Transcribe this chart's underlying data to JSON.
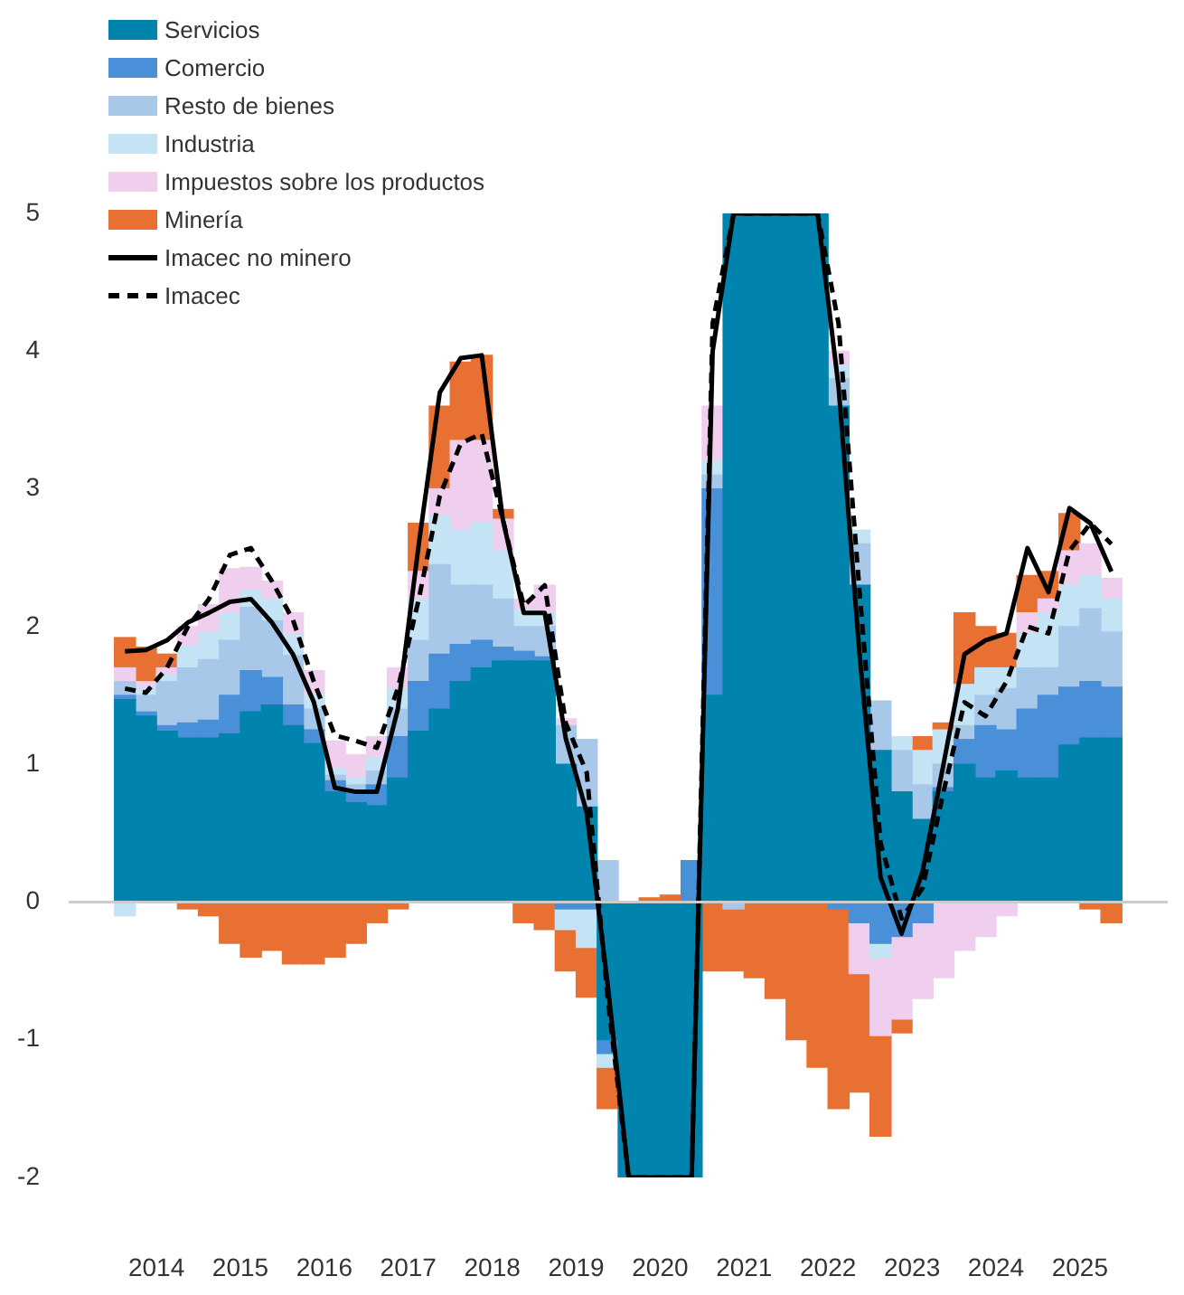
{
  "chart_data": {
    "type": "bar",
    "stacked": true,
    "legend": "top left",
    "grid": false,
    "marker": "none",
    "x": [
      2014.125,
      2014.375,
      2014.625,
      2014.875,
      2015.125,
      2015.375,
      2015.625,
      2015.875,
      2016.125,
      2016.375,
      2016.625,
      2016.875,
      2017.125,
      2017.375,
      2017.625,
      2017.875,
      2018.125,
      2018.375,
      2018.625,
      2018.875,
      2019.125,
      2019.375,
      2019.625,
      2019.875,
      2020.125,
      2020.375,
      2020.625,
      2020.875,
      2021.125,
      2021.375,
      2021.625,
      2021.875,
      2022.125,
      2022.375,
      2022.625,
      2022.875,
      2023.125,
      2023.375,
      2023.625,
      2023.875,
      2024.125,
      2024.375,
      2024.625,
      2024.875,
      2025.125,
      2025.375,
      2025.625,
      2025.875
    ],
    "xlim": [
      2014,
      2026
    ],
    "xticks": [
      {
        "value": 2014.5,
        "label": "2014"
      },
      {
        "value": 2015.5,
        "label": "2015"
      },
      {
        "value": 2016.5,
        "label": "2016"
      },
      {
        "value": 2017.5,
        "label": "2017"
      },
      {
        "value": 2018.5,
        "label": "2018"
      },
      {
        "value": 2019.5,
        "label": "2019"
      },
      {
        "value": 2020.5,
        "label": "2020"
      },
      {
        "value": 2021.5,
        "label": "2021"
      },
      {
        "value": 2022.5,
        "label": "2022"
      },
      {
        "value": 2023.5,
        "label": "2023"
      },
      {
        "value": 2024.5,
        "label": "2024"
      },
      {
        "value": 2025.5,
        "label": "2025"
      }
    ],
    "ylim": [
      -2,
      5
    ],
    "yticks": [
      -2,
      -1,
      0,
      1,
      2,
      3,
      4,
      5
    ],
    "ref_lines": [
      {
        "axis": "y",
        "value": 0,
        "color": "#cccccc"
      }
    ],
    "series": [
      {
        "name": "Servicios",
        "color": "#0083ad",
        "values": [
          1.47,
          1.35,
          1.24,
          1.19,
          1.19,
          1.22,
          1.38,
          1.43,
          1.28,
          1.15,
          0.8,
          0.72,
          0.7,
          0.9,
          1.24,
          1.4,
          1.6,
          1.7,
          1.75,
          1.75,
          1.75,
          1.0,
          0.69,
          -1.0,
          -2,
          -2,
          -2,
          -2,
          1.5,
          5,
          5,
          5,
          5,
          5,
          3.6,
          2.3,
          1.1,
          0.8,
          0.6,
          0.8,
          1.0,
          0.9,
          0.95,
          0.9,
          0.9,
          1.14,
          1.19,
          1.19
        ]
      },
      {
        "name": "Comercio",
        "color": "#4a90d9",
        "values": [
          0.03,
          0.03,
          0.04,
          0.11,
          0.13,
          0.28,
          0.3,
          0.2,
          0.15,
          0.1,
          0.08,
          0.08,
          0.15,
          0.3,
          0.36,
          0.4,
          0.27,
          0.2,
          0.1,
          0.07,
          0.03,
          -0.05,
          -0.05,
          -0.1,
          null,
          null,
          null,
          0.3,
          1.5,
          null,
          null,
          null,
          null,
          null,
          -0.05,
          -0.15,
          -0.3,
          -0.25,
          -0.15,
          0.03,
          0.18,
          0.38,
          0.3,
          0.5,
          0.6,
          0.42,
          0.41,
          0.37
        ]
      },
      {
        "name": "Resto de bienes",
        "color": "#a8c8ea",
        "values": [
          0.1,
          0.12,
          0.32,
          0.4,
          0.44,
          0.4,
          0.46,
          0.41,
          0.36,
          0.15,
          0.04,
          0.05,
          0.1,
          0.2,
          0.3,
          0.65,
          0.43,
          0.4,
          0.35,
          0.18,
          0.22,
          0.28,
          0.49,
          0.3,
          null,
          null,
          null,
          null,
          0.1,
          -0.05,
          null,
          null,
          null,
          null,
          0.2,
          0.3,
          0.36,
          0.3,
          0.25,
          0.17,
          0.1,
          0.22,
          0.3,
          0.3,
          0.2,
          0.44,
          0.53,
          0.4
        ]
      },
      {
        "name": "Industria",
        "color": "#c4e4f5",
        "values": [
          -0.1,
          0.05,
          0.05,
          0.16,
          0.2,
          0.2,
          0.13,
          0.16,
          0.15,
          0.1,
          0.05,
          0.05,
          0.1,
          0.15,
          0.3,
          0.35,
          0.4,
          0.45,
          0.35,
          0.12,
          0.1,
          -0.15,
          -0.28,
          -0.1,
          null,
          null,
          null,
          null,
          0.1,
          null,
          null,
          null,
          null,
          null,
          0.1,
          0.1,
          -0.1,
          0.1,
          0.25,
          0.25,
          0.3,
          0.2,
          0.15,
          0.25,
          0.4,
          0.3,
          0.24,
          0.24
        ]
      },
      {
        "name": "Impuestos sobre los productos",
        "color": "#f0cfee",
        "values": [
          0.1,
          0.05,
          0.05,
          0.14,
          0.2,
          0.32,
          0.16,
          0.13,
          0.16,
          0.18,
          0.2,
          0.17,
          0.15,
          0.15,
          0.2,
          0.2,
          0.65,
          0.6,
          0.23,
          0.08,
          0.2,
          0.05,
          null,
          null,
          null,
          null,
          null,
          null,
          0.4,
          null,
          null,
          null,
          null,
          null,
          0.1,
          -0.37,
          -0.57,
          -0.6,
          -0.55,
          -0.55,
          -0.35,
          -0.25,
          -0.1,
          0.15,
          0.1,
          0.25,
          0.23,
          0.15
        ]
      },
      {
        "name": "Minería",
        "color": "#e87033",
        "values": [
          0.22,
          0.25,
          0.1,
          -0.05,
          -0.1,
          -0.3,
          -0.4,
          -0.35,
          -0.45,
          -0.45,
          -0.4,
          -0.3,
          -0.15,
          -0.05,
          0.35,
          0.6,
          0.57,
          0.62,
          0.07,
          -0.15,
          -0.2,
          -0.3,
          -0.36,
          -0.3,
          null,
          0.03,
          0.05,
          null,
          -0.5,
          -0.45,
          -0.55,
          -0.7,
          -1.0,
          -1.2,
          -1.45,
          -0.86,
          -0.73,
          -0.1,
          0.1,
          0.05,
          0.52,
          0.3,
          0.25,
          0.27,
          0.2,
          0.27,
          -0.05,
          -0.15
        ]
      },
      {
        "name": "Imacec no minero",
        "type": "line",
        "color": "#000000",
        "line_style": "solid",
        "values": [
          1.82,
          1.83,
          1.9,
          2.03,
          2.1,
          2.18,
          2.2,
          2.03,
          1.8,
          1.45,
          0.83,
          0.8,
          0.8,
          1.4,
          2.6,
          3.7,
          3.95,
          3.97,
          2.78,
          2.1,
          2.1,
          1.19,
          0.65,
          -0.6,
          -2,
          -2,
          -2,
          -2,
          4.0,
          5,
          5,
          5,
          5,
          5,
          3.74,
          1.8,
          0.18,
          -0.23,
          0.22,
          1.0,
          1.8,
          1.9,
          1.95,
          2.57,
          2.25,
          2.86,
          2.75,
          2.4
        ]
      },
      {
        "name": "Imacec",
        "type": "line",
        "color": "#000000",
        "line_style": "dashed",
        "values": [
          1.55,
          1.52,
          1.7,
          2.0,
          2.2,
          2.52,
          2.57,
          2.33,
          2.05,
          1.6,
          1.21,
          1.17,
          1.12,
          1.55,
          2.2,
          2.95,
          3.33,
          3.4,
          2.78,
          2.15,
          2.3,
          1.3,
          0.94,
          -0.7,
          -2,
          -2,
          -2,
          -2,
          4.2,
          5,
          5,
          5,
          5,
          5,
          4.2,
          2.25,
          0.43,
          -0.12,
          0.1,
          0.8,
          1.45,
          1.35,
          1.6,
          2.0,
          1.95,
          2.55,
          2.75,
          2.6
        ]
      }
    ]
  }
}
